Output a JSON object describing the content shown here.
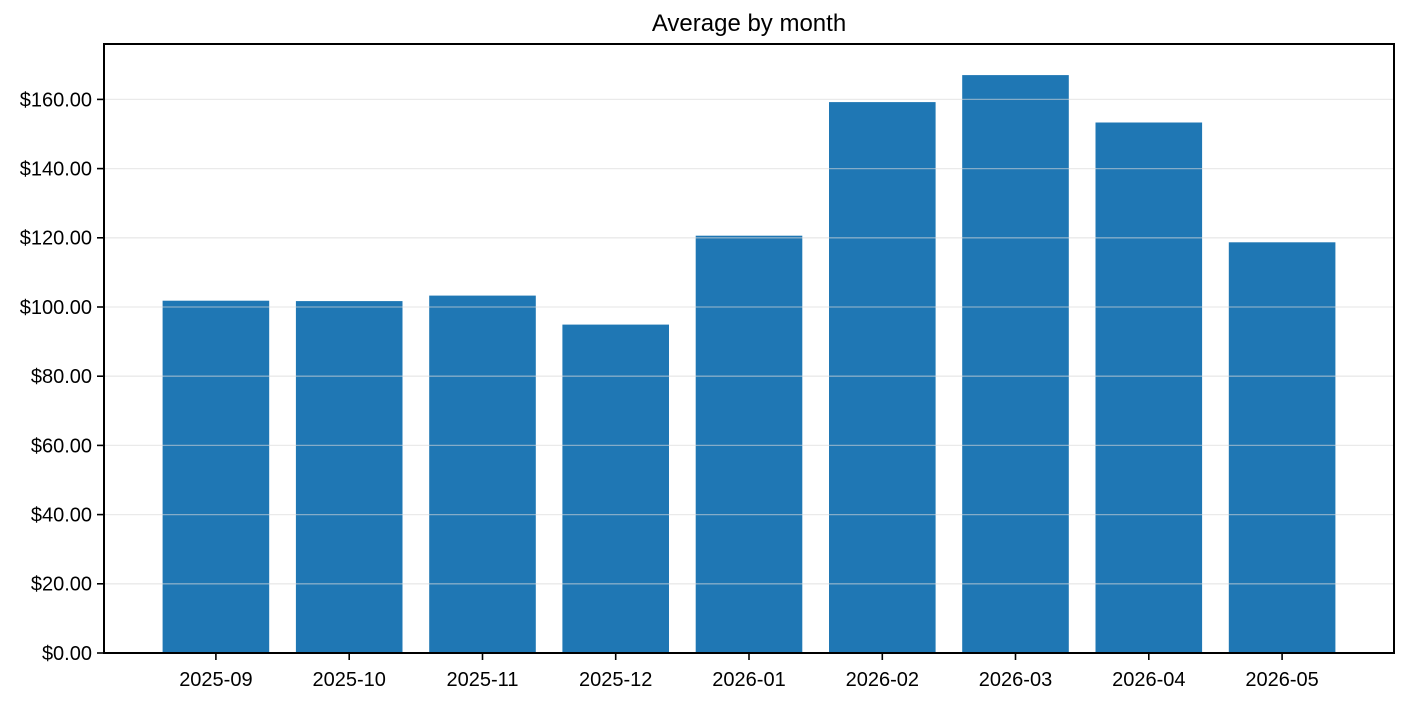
{
  "figure": {
    "title": "Average by month"
  },
  "chart_data": {
    "type": "bar",
    "title": "Average by month",
    "categories": [
      "2025-09",
      "2025-10",
      "2025-11",
      "2025-12",
      "2026-01",
      "2026-02",
      "2026-03",
      "2026-04",
      "2026-05"
    ],
    "values": [
      101.8,
      101.7,
      103.3,
      94.9,
      120.6,
      159.2,
      167.0,
      153.3,
      118.7
    ],
    "xlabel": "",
    "ylabel": "",
    "ylim": [
      0,
      176
    ],
    "ytick_step": 20,
    "ytick_prefix": "$",
    "ytick_decimals": 2,
    "ytick_labels": [
      "$0.00",
      "$20.00",
      "$40.00",
      "$60.00",
      "$80.00",
      "$100.00",
      "$120.00",
      "$140.00",
      "$160.00"
    ],
    "grid": "horizontal",
    "grid_above_bars": true,
    "legend": "none",
    "bar_color": "#1f77b4",
    "grid_color": "#d9d9d9",
    "axis_color": "#000000",
    "text_color": "#000000",
    "background": "#ffffff"
  }
}
